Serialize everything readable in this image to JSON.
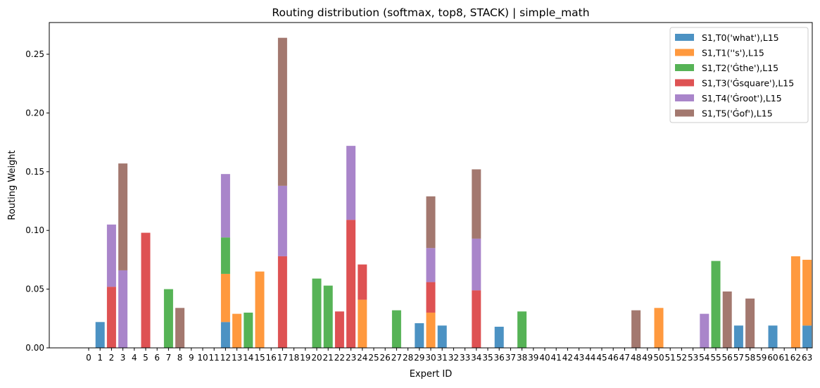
{
  "chart_data": {
    "type": "bar",
    "stacked": true,
    "title": "Routing distribution (softmax, top8, STACK) | simple_math",
    "xlabel": "Expert ID",
    "ylabel": "Routing Weight",
    "ylim": [
      0,
      0.277
    ],
    "yticks": [
      0.0,
      0.05,
      0.1,
      0.15,
      0.2,
      0.25
    ],
    "ytick_labels": [
      "0.00",
      "0.05",
      "0.10",
      "0.15",
      "0.20",
      "0.25"
    ],
    "grid": false,
    "legend_position": "top-right",
    "categories": [
      "0",
      "1",
      "2",
      "3",
      "4",
      "5",
      "6",
      "7",
      "8",
      "9",
      "10",
      "11",
      "12",
      "13",
      "14",
      "15",
      "16",
      "17",
      "18",
      "19",
      "20",
      "21",
      "22",
      "23",
      "24",
      "25",
      "26",
      "27",
      "28",
      "29",
      "30",
      "31",
      "32",
      "33",
      "34",
      "35",
      "36",
      "37",
      "38",
      "39",
      "40",
      "41",
      "42",
      "43",
      "44",
      "45",
      "46",
      "47",
      "48",
      "49",
      "50",
      "51",
      "52",
      "53",
      "54",
      "55",
      "56",
      "57",
      "58",
      "59",
      "60",
      "61",
      "62",
      "63"
    ],
    "series": [
      {
        "name": "S1,T0('what'),L15",
        "color": "#1f77b4",
        "values": [
          0,
          0.022,
          0,
          0,
          0,
          0,
          0,
          0,
          0,
          0,
          0,
          0,
          0.022,
          0,
          0,
          0,
          0,
          0,
          0,
          0,
          0,
          0,
          0,
          0,
          0,
          0,
          0,
          0,
          0,
          0.021,
          0,
          0.019,
          0,
          0,
          0,
          0,
          0.018,
          0,
          0,
          0,
          0,
          0,
          0,
          0,
          0,
          0,
          0,
          0,
          0,
          0,
          0,
          0,
          0,
          0,
          0,
          0,
          0,
          0.019,
          0,
          0,
          0.019,
          0,
          0,
          0.019
        ]
      },
      {
        "name": "S1,T1(''s'),L15",
        "color": "#ff7f0e",
        "values": [
          0,
          0,
          0,
          0,
          0,
          0,
          0,
          0,
          0,
          0,
          0,
          0,
          0.041,
          0.029,
          0,
          0.065,
          0,
          0,
          0,
          0,
          0,
          0,
          0,
          0,
          0.041,
          0,
          0,
          0,
          0,
          0,
          0.03,
          0,
          0,
          0,
          0,
          0,
          0,
          0,
          0,
          0,
          0,
          0,
          0,
          0,
          0,
          0,
          0,
          0,
          0,
          0,
          0.034,
          0,
          0,
          0,
          0,
          0,
          0,
          0,
          0,
          0,
          0,
          0,
          0.078,
          0.056
        ]
      },
      {
        "name": "S1,T2('Ġthe'),L15",
        "color": "#2ca02c",
        "values": [
          0,
          0,
          0,
          0,
          0,
          0,
          0,
          0.05,
          0,
          0,
          0,
          0,
          0.031,
          0,
          0.03,
          0,
          0,
          0,
          0,
          0,
          0.059,
          0.053,
          0,
          0,
          0,
          0,
          0,
          0.032,
          0,
          0,
          0,
          0,
          0,
          0,
          0,
          0,
          0,
          0,
          0.031,
          0,
          0,
          0,
          0,
          0,
          0,
          0,
          0,
          0,
          0,
          0,
          0,
          0,
          0,
          0,
          0,
          0.074,
          0,
          0,
          0,
          0,
          0,
          0,
          0,
          0
        ]
      },
      {
        "name": "S1,T3('Ġsquare'),L15",
        "color": "#d62728",
        "values": [
          0,
          0,
          0.052,
          0,
          0,
          0.098,
          0,
          0,
          0,
          0,
          0,
          0,
          0,
          0,
          0,
          0,
          0,
          0.078,
          0,
          0,
          0,
          0,
          0.031,
          0.109,
          0.03,
          0,
          0,
          0,
          0,
          0,
          0.026,
          0,
          0,
          0,
          0.049,
          0,
          0,
          0,
          0,
          0,
          0,
          0,
          0,
          0,
          0,
          0,
          0,
          0,
          0,
          0,
          0,
          0,
          0,
          0,
          0,
          0,
          0,
          0,
          0,
          0,
          0,
          0,
          0,
          0
        ]
      },
      {
        "name": "S1,T4('Ġroot'),L15",
        "color": "#9467bd",
        "values": [
          0,
          0,
          0.053,
          0.066,
          0,
          0,
          0,
          0,
          0,
          0,
          0,
          0,
          0.054,
          0,
          0,
          0,
          0,
          0.06,
          0,
          0,
          0,
          0,
          0,
          0.063,
          0,
          0,
          0,
          0,
          0,
          0,
          0.029,
          0,
          0,
          0,
          0.044,
          0,
          0,
          0,
          0,
          0,
          0,
          0,
          0,
          0,
          0,
          0,
          0,
          0,
          0,
          0,
          0,
          0,
          0,
          0,
          0.029,
          0,
          0,
          0,
          0,
          0,
          0,
          0,
          0,
          0
        ]
      },
      {
        "name": "S1,T5('Ġof'),L15",
        "color": "#8c564b",
        "values": [
          0,
          0,
          0,
          0.091,
          0,
          0,
          0,
          0,
          0.034,
          0,
          0,
          0,
          0,
          0,
          0,
          0,
          0,
          0.126,
          0,
          0,
          0,
          0,
          0,
          0,
          0,
          0,
          0,
          0,
          0,
          0,
          0.044,
          0,
          0,
          0,
          0.059,
          0,
          0,
          0,
          0,
          0,
          0,
          0,
          0,
          0,
          0,
          0,
          0,
          0,
          0.032,
          0,
          0,
          0,
          0,
          0,
          0,
          0,
          0.048,
          0,
          0.042,
          0,
          0,
          0,
          0,
          0
        ]
      }
    ]
  }
}
